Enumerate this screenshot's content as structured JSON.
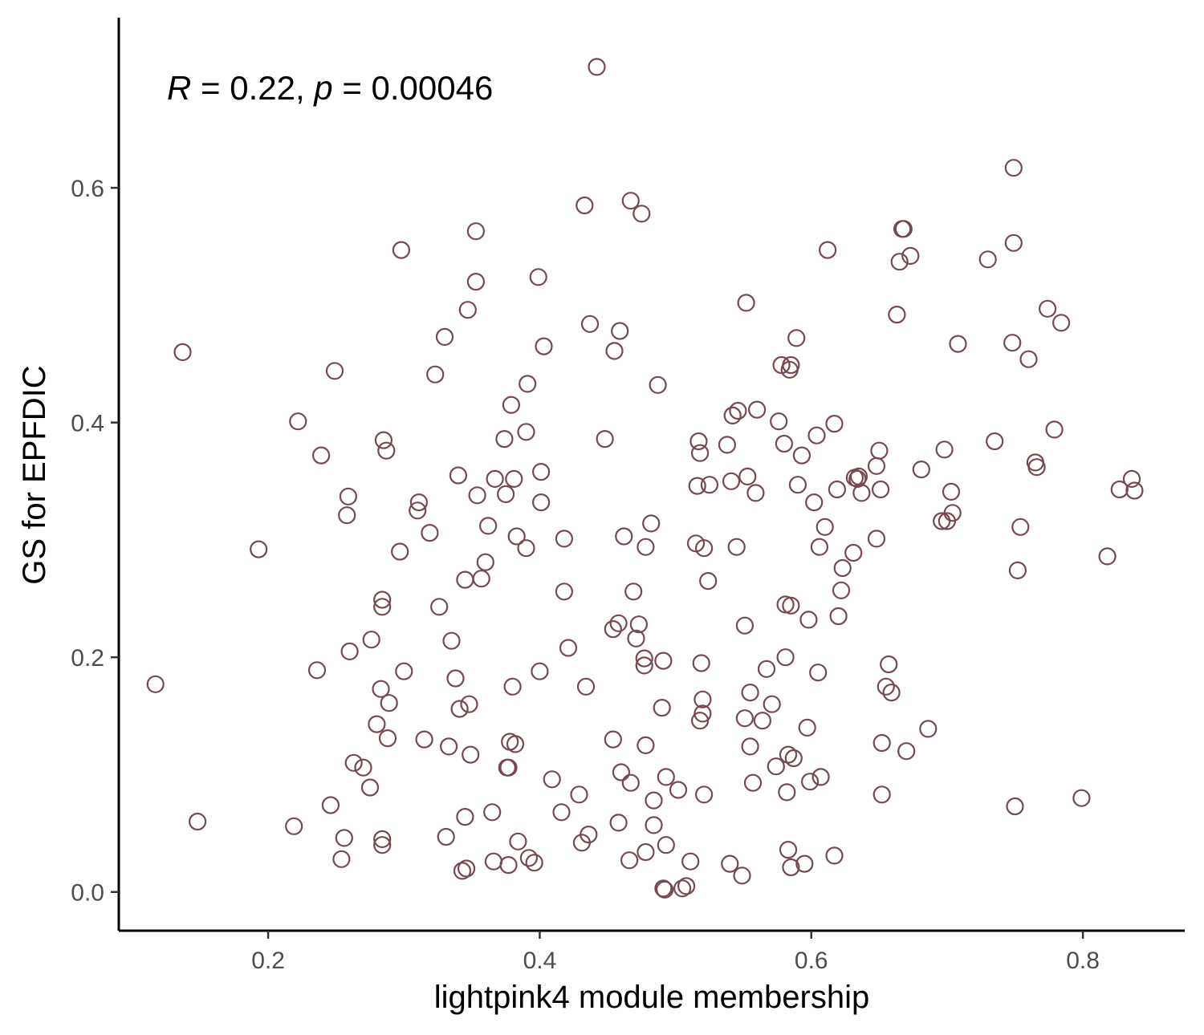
{
  "chart_data": {
    "type": "scatter",
    "xlabel": "lightpink4 module membership",
    "ylabel": "GS for EPFDIC",
    "annotation": {
      "r_label": "R",
      "r_text": " = 0.22, ",
      "p_label": "p",
      "p_text": " = 0.00046"
    },
    "xlim": [
      0.09,
      0.875
    ],
    "ylim": [
      -0.033,
      0.745
    ],
    "xticks": [
      0.2,
      0.4,
      0.6,
      0.8
    ],
    "yticks": [
      0.0,
      0.2,
      0.4,
      0.6
    ],
    "xtick_labels": [
      "0.2",
      "0.4",
      "0.6",
      "0.8"
    ],
    "ytick_labels": [
      "0.0",
      "0.2",
      "0.4",
      "0.6"
    ],
    "grid": false,
    "point_color": "#76484f",
    "points": [
      [
        0.117,
        0.177
      ],
      [
        0.137,
        0.46
      ],
      [
        0.148,
        0.06
      ],
      [
        0.193,
        0.292
      ],
      [
        0.219,
        0.056
      ],
      [
        0.222,
        0.401
      ],
      [
        0.236,
        0.189
      ],
      [
        0.239,
        0.372
      ],
      [
        0.246,
        0.074
      ],
      [
        0.249,
        0.444
      ],
      [
        0.254,
        0.028
      ],
      [
        0.256,
        0.046
      ],
      [
        0.258,
        0.321
      ],
      [
        0.259,
        0.337
      ],
      [
        0.26,
        0.205
      ],
      [
        0.263,
        0.11
      ],
      [
        0.27,
        0.106
      ],
      [
        0.275,
        0.089
      ],
      [
        0.276,
        0.215
      ],
      [
        0.28,
        0.143
      ],
      [
        0.283,
        0.173
      ],
      [
        0.284,
        0.045
      ],
      [
        0.284,
        0.04
      ],
      [
        0.284,
        0.249
      ],
      [
        0.284,
        0.243
      ],
      [
        0.285,
        0.385
      ],
      [
        0.287,
        0.376
      ],
      [
        0.288,
        0.131
      ],
      [
        0.289,
        0.161
      ],
      [
        0.297,
        0.29
      ],
      [
        0.298,
        0.547
      ],
      [
        0.3,
        0.188
      ],
      [
        0.31,
        0.325
      ],
      [
        0.311,
        0.332
      ],
      [
        0.315,
        0.13
      ],
      [
        0.319,
        0.306
      ],
      [
        0.323,
        0.441
      ],
      [
        0.326,
        0.243
      ],
      [
        0.33,
        0.473
      ],
      [
        0.331,
        0.047
      ],
      [
        0.333,
        0.124
      ],
      [
        0.335,
        0.214
      ],
      [
        0.338,
        0.182
      ],
      [
        0.34,
        0.355
      ],
      [
        0.341,
        0.156
      ],
      [
        0.343,
        0.018
      ],
      [
        0.346,
        0.02
      ],
      [
        0.345,
        0.064
      ],
      [
        0.345,
        0.266
      ],
      [
        0.347,
        0.496
      ],
      [
        0.348,
        0.16
      ],
      [
        0.349,
        0.117
      ],
      [
        0.353,
        0.563
      ],
      [
        0.353,
        0.52
      ],
      [
        0.354,
        0.338
      ],
      [
        0.357,
        0.267
      ],
      [
        0.36,
        0.281
      ],
      [
        0.362,
        0.312
      ],
      [
        0.365,
        0.068
      ],
      [
        0.366,
        0.026
      ],
      [
        0.367,
        0.352
      ],
      [
        0.374,
        0.386
      ],
      [
        0.375,
        0.339
      ],
      [
        0.376,
        0.106
      ],
      [
        0.377,
        0.106
      ],
      [
        0.377,
        0.023
      ],
      [
        0.378,
        0.128
      ],
      [
        0.379,
        0.415
      ],
      [
        0.38,
        0.175
      ],
      [
        0.381,
        0.352
      ],
      [
        0.382,
        0.126
      ],
      [
        0.383,
        0.303
      ],
      [
        0.384,
        0.043
      ],
      [
        0.39,
        0.293
      ],
      [
        0.391,
        0.433
      ],
      [
        0.39,
        0.392
      ],
      [
        0.392,
        0.029
      ],
      [
        0.396,
        0.025
      ],
      [
        0.399,
        0.524
      ],
      [
        0.4,
        0.188
      ],
      [
        0.401,
        0.358
      ],
      [
        0.401,
        0.332
      ],
      [
        0.403,
        0.465
      ],
      [
        0.409,
        0.096
      ],
      [
        0.416,
        0.068
      ],
      [
        0.418,
        0.301
      ],
      [
        0.418,
        0.256
      ],
      [
        0.421,
        0.208
      ],
      [
        0.429,
        0.083
      ],
      [
        0.431,
        0.042
      ],
      [
        0.433,
        0.585
      ],
      [
        0.434,
        0.175
      ],
      [
        0.436,
        0.049
      ],
      [
        0.437,
        0.484
      ],
      [
        0.442,
        0.703
      ],
      [
        0.448,
        0.386
      ],
      [
        0.454,
        0.224
      ],
      [
        0.454,
        0.13
      ],
      [
        0.455,
        0.461
      ],
      [
        0.458,
        0.229
      ],
      [
        0.458,
        0.059
      ],
      [
        0.459,
        0.478
      ],
      [
        0.46,
        0.102
      ],
      [
        0.462,
        0.303
      ],
      [
        0.466,
        0.027
      ],
      [
        0.467,
        0.093
      ],
      [
        0.467,
        0.589
      ],
      [
        0.469,
        0.256
      ],
      [
        0.471,
        0.216
      ],
      [
        0.473,
        0.228
      ],
      [
        0.475,
        0.578
      ],
      [
        0.477,
        0.199
      ],
      [
        0.477,
        0.193
      ],
      [
        0.478,
        0.125
      ],
      [
        0.478,
        0.034
      ],
      [
        0.478,
        0.294
      ],
      [
        0.482,
        0.314
      ],
      [
        0.484,
        0.078
      ],
      [
        0.484,
        0.057
      ],
      [
        0.487,
        0.432
      ],
      [
        0.49,
        0.157
      ],
      [
        0.491,
        0.197
      ],
      [
        0.491,
        0.003
      ],
      [
        0.492,
        0.002
      ],
      [
        0.493,
        0.098
      ],
      [
        0.493,
        0.04
      ],
      [
        0.502,
        0.087
      ],
      [
        0.508,
        0.005
      ],
      [
        0.505,
        0.003
      ],
      [
        0.511,
        0.026
      ],
      [
        0.515,
        0.297
      ],
      [
        0.516,
        0.346
      ],
      [
        0.517,
        0.384
      ],
      [
        0.518,
        0.146
      ],
      [
        0.518,
        0.374
      ],
      [
        0.519,
        0.195
      ],
      [
        0.52,
        0.164
      ],
      [
        0.52,
        0.152
      ],
      [
        0.521,
        0.293
      ],
      [
        0.521,
        0.083
      ],
      [
        0.524,
        0.265
      ],
      [
        0.525,
        0.347
      ],
      [
        0.538,
        0.381
      ],
      [
        0.54,
        0.024
      ],
      [
        0.541,
        0.35
      ],
      [
        0.542,
        0.406
      ],
      [
        0.545,
        0.294
      ],
      [
        0.546,
        0.41
      ],
      [
        0.549,
        0.014
      ],
      [
        0.551,
        0.148
      ],
      [
        0.551,
        0.227
      ],
      [
        0.552,
        0.502
      ],
      [
        0.553,
        0.354
      ],
      [
        0.555,
        0.17
      ],
      [
        0.555,
        0.124
      ],
      [
        0.557,
        0.093
      ],
      [
        0.559,
        0.34
      ],
      [
        0.56,
        0.411
      ],
      [
        0.564,
        0.146
      ],
      [
        0.567,
        0.19
      ],
      [
        0.571,
        0.16
      ],
      [
        0.574,
        0.107
      ],
      [
        0.576,
        0.401
      ],
      [
        0.578,
        0.449
      ],
      [
        0.58,
        0.382
      ],
      [
        0.581,
        0.245
      ],
      [
        0.581,
        0.2
      ],
      [
        0.582,
        0.085
      ],
      [
        0.583,
        0.117
      ],
      [
        0.583,
        0.036
      ],
      [
        0.584,
        0.445
      ],
      [
        0.585,
        0.449
      ],
      [
        0.585,
        0.244
      ],
      [
        0.585,
        0.021
      ],
      [
        0.587,
        0.114
      ],
      [
        0.589,
        0.472
      ],
      [
        0.59,
        0.347
      ],
      [
        0.593,
        0.372
      ],
      [
        0.595,
        0.024
      ],
      [
        0.597,
        0.14
      ],
      [
        0.598,
        0.232
      ],
      [
        0.599,
        0.094
      ],
      [
        0.602,
        0.332
      ],
      [
        0.604,
        0.389
      ],
      [
        0.605,
        0.187
      ],
      [
        0.606,
        0.294
      ],
      [
        0.607,
        0.098
      ],
      [
        0.61,
        0.311
      ],
      [
        0.612,
        0.547
      ],
      [
        0.617,
        0.399
      ],
      [
        0.617,
        0.031
      ],
      [
        0.619,
        0.343
      ],
      [
        0.62,
        0.235
      ],
      [
        0.622,
        0.257
      ],
      [
        0.623,
        0.276
      ],
      [
        0.631,
        0.289
      ],
      [
        0.632,
        0.353
      ],
      [
        0.634,
        0.352
      ],
      [
        0.635,
        0.354
      ],
      [
        0.637,
        0.34
      ],
      [
        0.648,
        0.301
      ],
      [
        0.648,
        0.363
      ],
      [
        0.65,
        0.376
      ],
      [
        0.651,
        0.343
      ],
      [
        0.652,
        0.127
      ],
      [
        0.652,
        0.083
      ],
      [
        0.655,
        0.175
      ],
      [
        0.657,
        0.194
      ],
      [
        0.659,
        0.17
      ],
      [
        0.663,
        0.492
      ],
      [
        0.665,
        0.537
      ],
      [
        0.667,
        0.565
      ],
      [
        0.668,
        0.565
      ],
      [
        0.67,
        0.12
      ],
      [
        0.673,
        0.542
      ],
      [
        0.681,
        0.36
      ],
      [
        0.686,
        0.139
      ],
      [
        0.696,
        0.316
      ],
      [
        0.698,
        0.377
      ],
      [
        0.7,
        0.316
      ],
      [
        0.703,
        0.341
      ],
      [
        0.704,
        0.323
      ],
      [
        0.708,
        0.467
      ],
      [
        0.73,
        0.539
      ],
      [
        0.735,
        0.384
      ],
      [
        0.748,
        0.468
      ],
      [
        0.749,
        0.617
      ],
      [
        0.749,
        0.553
      ],
      [
        0.75,
        0.073
      ],
      [
        0.752,
        0.274
      ],
      [
        0.754,
        0.311
      ],
      [
        0.76,
        0.454
      ],
      [
        0.765,
        0.366
      ],
      [
        0.766,
        0.362
      ],
      [
        0.774,
        0.497
      ],
      [
        0.779,
        0.394
      ],
      [
        0.784,
        0.485
      ],
      [
        0.799,
        0.08
      ],
      [
        0.818,
        0.286
      ],
      [
        0.827,
        0.343
      ],
      [
        0.836,
        0.352
      ],
      [
        0.838,
        0.342
      ]
    ]
  }
}
